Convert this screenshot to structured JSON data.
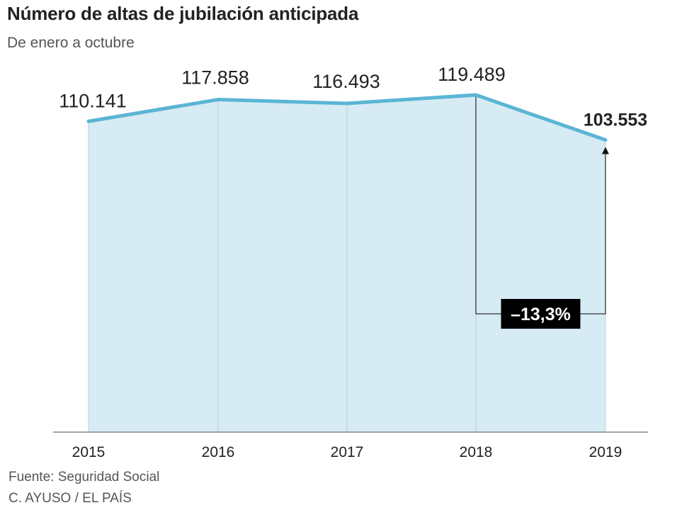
{
  "chart_data": {
    "type": "area",
    "title": "Número de altas de jubilación anticipada",
    "subtitle": "De enero a octubre",
    "categories": [
      "2015",
      "2016",
      "2017",
      "2018",
      "2019"
    ],
    "values": [
      110141,
      117858,
      116493,
      119489,
      103553
    ],
    "value_labels": [
      "110.141",
      "117.858",
      "116.493",
      "119.489",
      "103.553"
    ],
    "ylim": [
      0,
      120000
    ],
    "annotation": {
      "label": "–13,3%",
      "from": "2018",
      "to": "2019"
    },
    "grid": false,
    "colors": {
      "line": "#5bb5d5",
      "fill": "#d6ebf4",
      "badge": "#000000",
      "axis": "#888888"
    }
  },
  "footer": {
    "source": "Fuente: Seguridad Social",
    "credit": "C. AYUSO / EL PAÍS"
  }
}
